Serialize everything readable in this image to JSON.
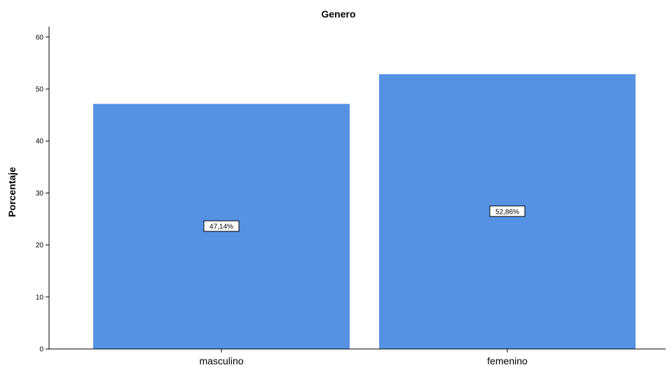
{
  "chart_data": {
    "type": "bar",
    "title": "Genero",
    "xlabel": "",
    "ylabel": "Porcentaje",
    "categories": [
      "masculino",
      "femenino"
    ],
    "values": [
      47.14,
      52.86
    ],
    "data_labels": [
      "47,14%",
      "52,86%"
    ],
    "ylim": [
      0,
      62
    ],
    "yticks": [
      0,
      10,
      20,
      30,
      40,
      50,
      60
    ],
    "grid": false,
    "bar_color": "#5592e3"
  }
}
